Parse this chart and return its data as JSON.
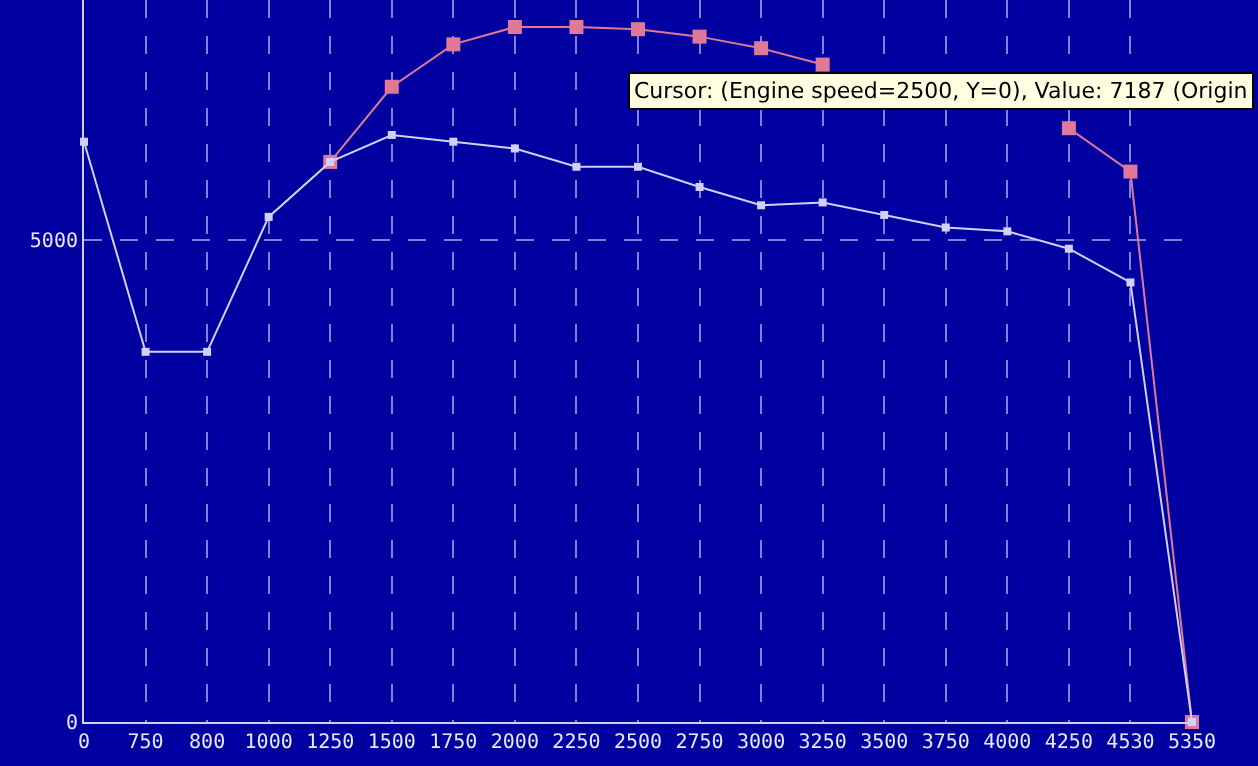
{
  "chart_data": {
    "type": "line",
    "categories": [
      "0",
      "750",
      "800",
      "1000",
      "1250",
      "1500",
      "1750",
      "2000",
      "2250",
      "2500",
      "2750",
      "3000",
      "3250",
      "3500",
      "3750",
      "4000",
      "4250",
      "4530",
      "5350"
    ],
    "series": [
      {
        "color": "#e07898",
        "values": [
          null,
          null,
          null,
          null,
          5810,
          6590,
          7030,
          7210,
          7210,
          7187,
          7110,
          6990,
          6820,
          null,
          null,
          null,
          6160,
          5710,
          0
        ]
      },
      {
        "color": "#d0d0f8",
        "values": [
          6020,
          3840,
          3840,
          5240,
          5810,
          6090,
          6020,
          5950,
          5760,
          5760,
          5550,
          5360,
          5390,
          5260,
          5130,
          5090,
          4910,
          4560,
          0
        ]
      }
    ],
    "ylim": [
      0,
      7490
    ],
    "yticks": [
      0,
      5000
    ],
    "grid": true,
    "marker": "square",
    "line_style": "solid",
    "annotations": [
      "Cursor: (Engine speed=2500, Y=0), Value: 7187 (Origin"
    ]
  }
}
